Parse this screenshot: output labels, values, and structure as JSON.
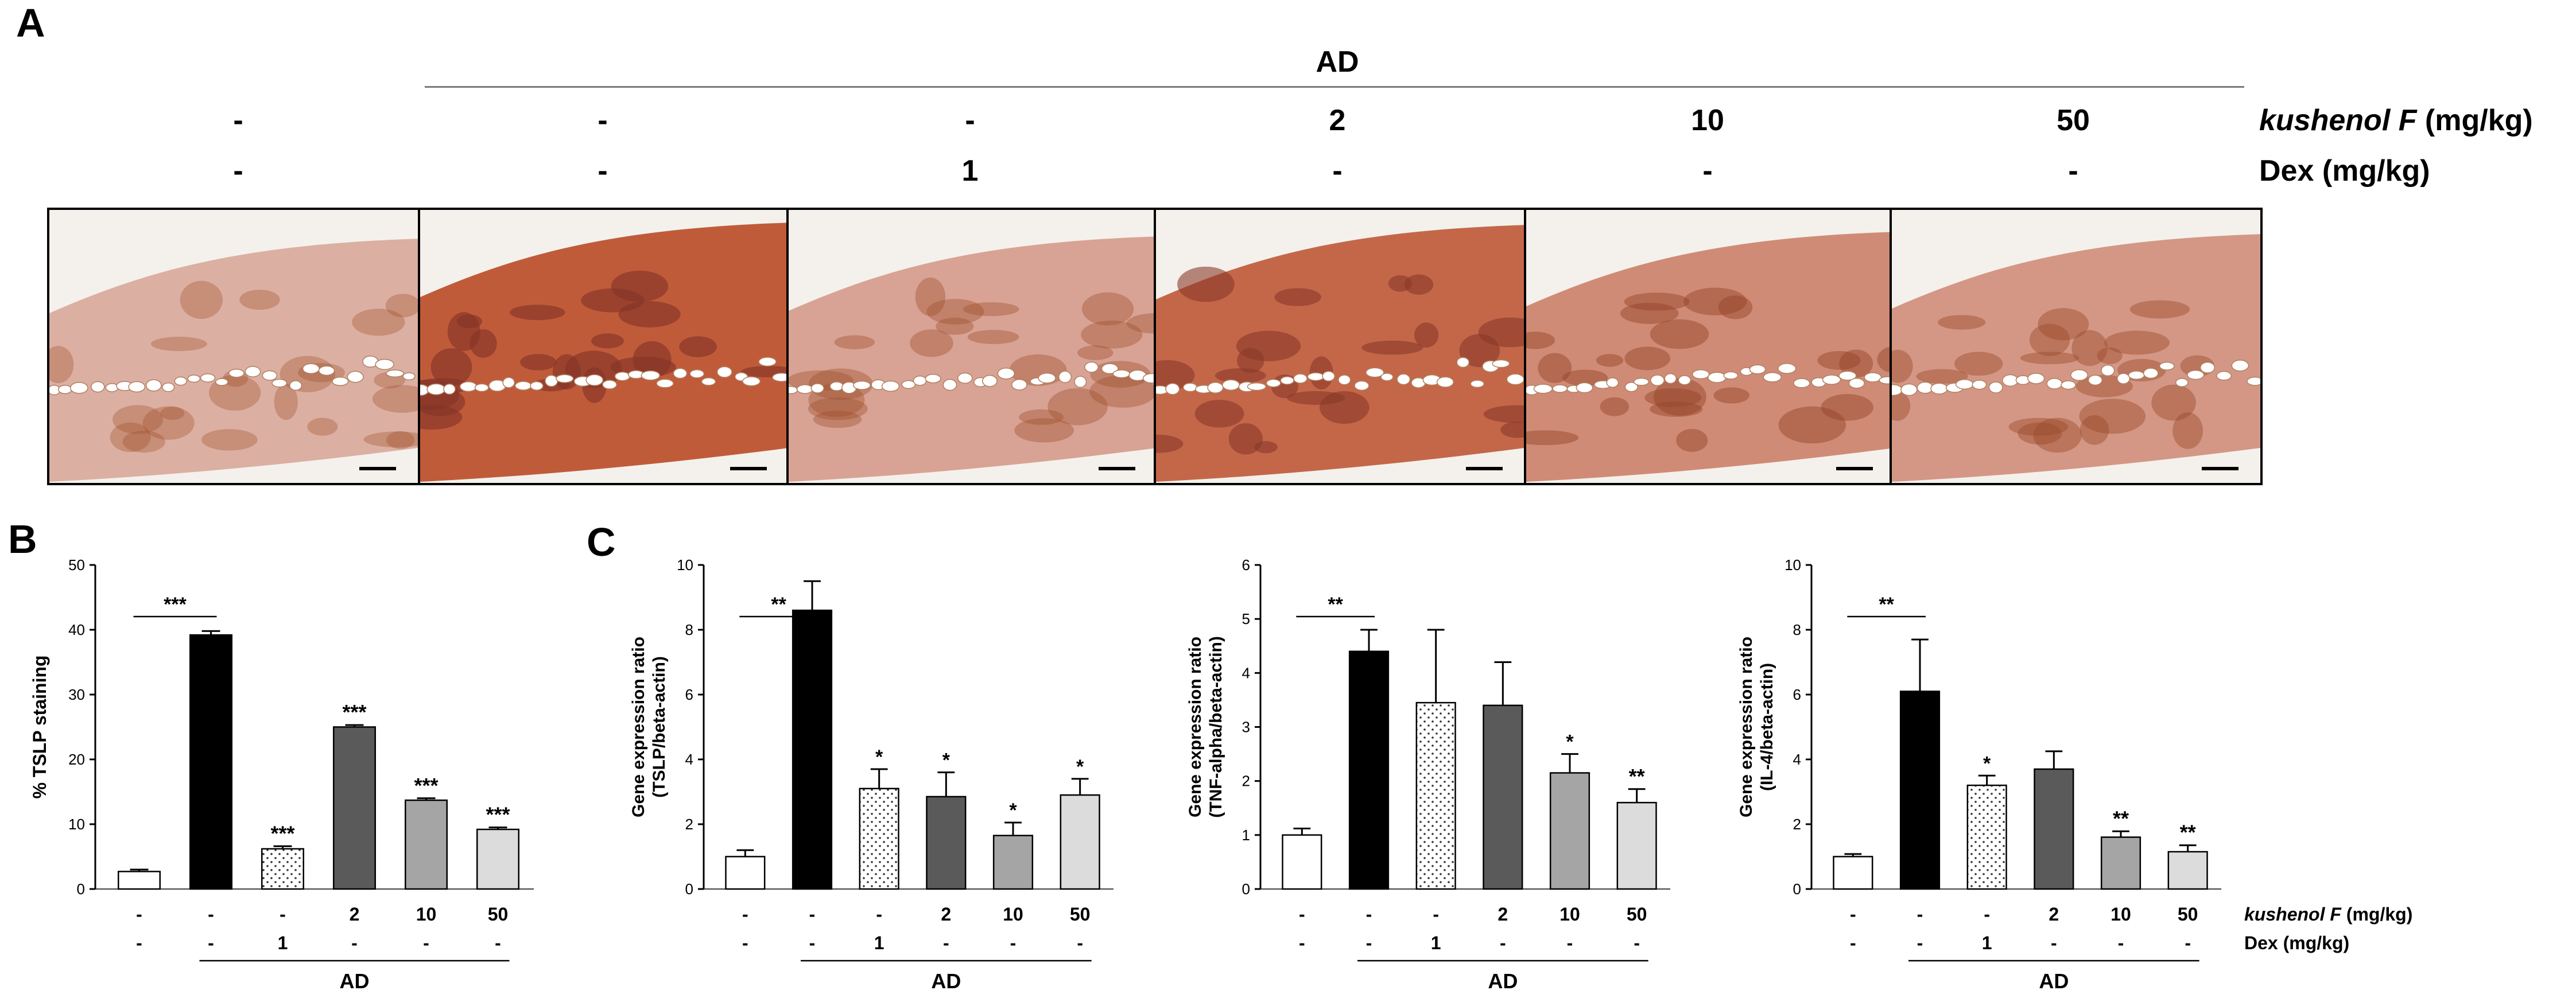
{
  "panel_letters": {
    "a": "A",
    "b": "B",
    "c": "C"
  },
  "panel_a": {
    "ad_label": "AD",
    "kushenol_label": "kushenol F",
    "kushenol_unit": " (mg/kg)",
    "dex_label": "Dex (mg/kg)",
    "kushenol_values": [
      "-",
      "-",
      "-",
      "2",
      "10",
      "50"
    ],
    "dex_values": [
      "-",
      "-",
      "1",
      "-",
      "-",
      "-"
    ],
    "stain_intensity": [
      0.25,
      0.95,
      0.35,
      0.85,
      0.55,
      0.45
    ]
  },
  "chart_data": [
    {
      "type": "bar",
      "panel": "B",
      "ylabel": "% TSLP staining",
      "ylim": [
        0,
        50
      ],
      "yticks": [
        0,
        10,
        20,
        30,
        40,
        50
      ],
      "values": [
        2.7,
        39.2,
        6.2,
        25.0,
        13.7,
        9.2
      ],
      "errors": [
        0.3,
        0.6,
        0.4,
        0.3,
        0.3,
        0.3
      ],
      "significance": [
        "",
        "",
        "***",
        "***",
        "***",
        "***"
      ],
      "bracket_label": "***",
      "fills": [
        "#ffffff",
        "#000000",
        "dots",
        "#5a5a5a",
        "#a5a5a5",
        "#dcdcdc"
      ],
      "row1": [
        "-",
        "-",
        "-",
        "2",
        "10",
        "50"
      ],
      "row2": [
        "-",
        "-",
        "1",
        "-",
        "-",
        "-"
      ],
      "group_label": "AD"
    },
    {
      "type": "bar",
      "panel": "C",
      "ylabel": "Gene expression ratio",
      "ylabel2": "(TSLP/beta-actin)",
      "ylim": [
        0,
        10
      ],
      "yticks": [
        0,
        2,
        4,
        6,
        8,
        10
      ],
      "values": [
        1.0,
        8.6,
        3.1,
        2.85,
        1.65,
        2.9
      ],
      "errors": [
        0.2,
        0.9,
        0.6,
        0.75,
        0.4,
        0.5
      ],
      "significance": [
        "",
        "",
        "*",
        "*",
        "*",
        "*"
      ],
      "bracket_label": "**",
      "fills": [
        "#ffffff",
        "#000000",
        "dots",
        "#5a5a5a",
        "#a5a5a5",
        "#dcdcdc"
      ],
      "row1": [
        "-",
        "-",
        "-",
        "2",
        "10",
        "50"
      ],
      "row2": [
        "-",
        "-",
        "1",
        "-",
        "-",
        "-"
      ],
      "group_label": "AD"
    },
    {
      "type": "bar",
      "panel": "C",
      "ylabel": "Gene expression ratio",
      "ylabel2": "(TNF-alpha/beta-actin)",
      "ylim": [
        0,
        6
      ],
      "yticks": [
        0,
        1,
        2,
        3,
        4,
        5,
        6
      ],
      "values": [
        1.0,
        4.4,
        3.45,
        3.4,
        2.15,
        1.6
      ],
      "errors": [
        0.12,
        0.4,
        1.35,
        0.8,
        0.35,
        0.25
      ],
      "significance": [
        "",
        "",
        "",
        "",
        "*",
        "**"
      ],
      "bracket_label": "**",
      "fills": [
        "#ffffff",
        "#000000",
        "dots",
        "#5a5a5a",
        "#a5a5a5",
        "#dcdcdc"
      ],
      "row1": [
        "-",
        "-",
        "-",
        "2",
        "10",
        "50"
      ],
      "row2": [
        "-",
        "-",
        "1",
        "-",
        "-",
        "-"
      ],
      "group_label": "AD"
    },
    {
      "type": "bar",
      "panel": "C",
      "ylabel": "Gene expression ratio",
      "ylabel2": "(IL-4/beta-actin)",
      "ylim": [
        0,
        10
      ],
      "yticks": [
        0,
        2,
        4,
        6,
        8,
        10
      ],
      "values": [
        1.0,
        6.1,
        3.2,
        3.7,
        1.6,
        1.15
      ],
      "errors": [
        0.08,
        1.6,
        0.3,
        0.55,
        0.18,
        0.2
      ],
      "significance": [
        "",
        "",
        "*",
        "",
        "**",
        "**"
      ],
      "bracket_label": "**",
      "fills": [
        "#ffffff",
        "#000000",
        "dots",
        "#5a5a5a",
        "#a5a5a5",
        "#dcdcdc"
      ],
      "row1": [
        "-",
        "-",
        "-",
        "2",
        "10",
        "50"
      ],
      "row2": [
        "-",
        "-",
        "1",
        "-",
        "-",
        "-"
      ],
      "group_label": "AD",
      "row1_label": "kushenol F",
      "row1_unit": " (mg/kg)",
      "row2_label": "Dex (mg/kg)"
    }
  ]
}
